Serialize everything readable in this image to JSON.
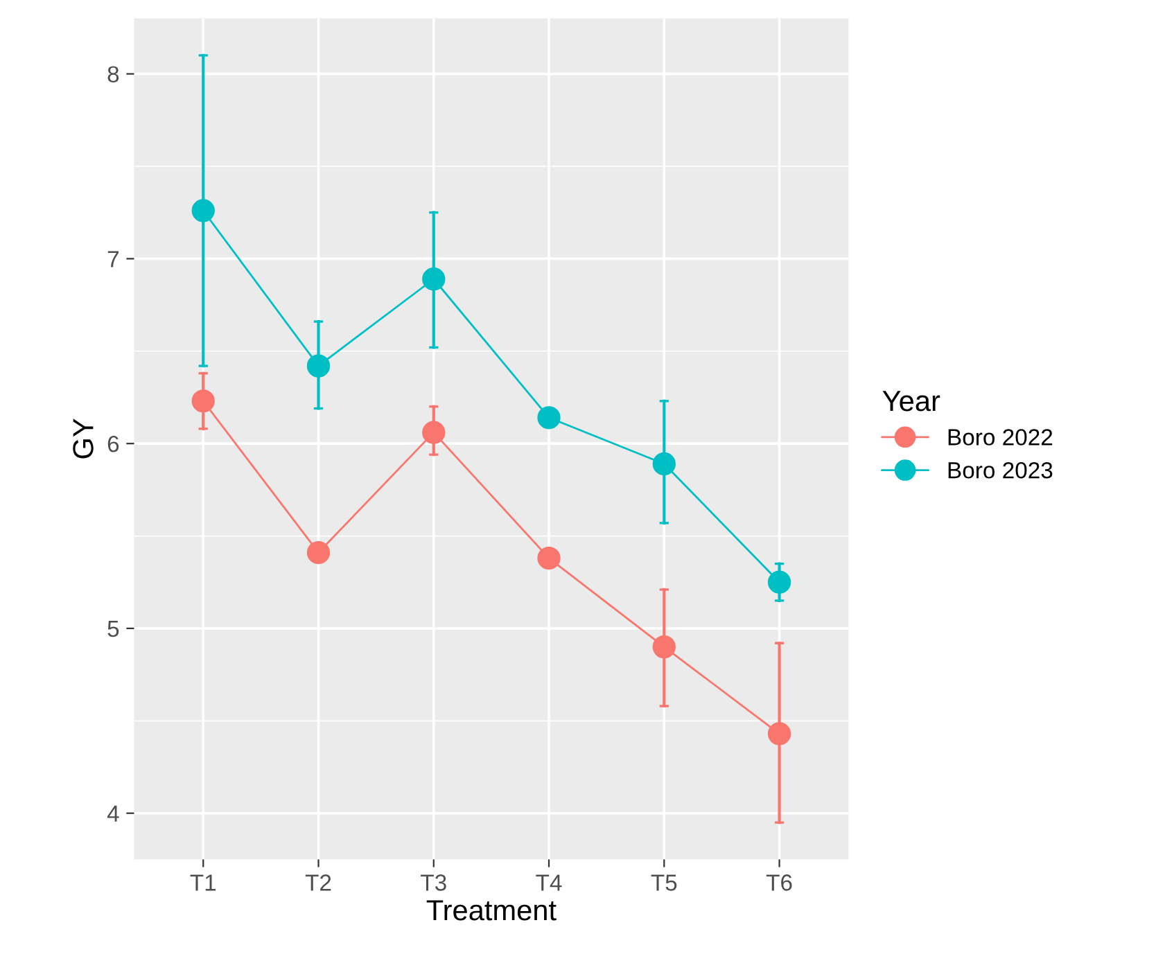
{
  "chart_data": {
    "type": "line",
    "xlabel": "Treatment",
    "ylabel": "GY",
    "legend_title": "Year",
    "categories": [
      "T1",
      "T2",
      "T3",
      "T4",
      "T5",
      "T6"
    ],
    "series": [
      {
        "name": "Boro 2022",
        "color": "#f8766d",
        "values": [
          6.23,
          5.41,
          6.06,
          5.38,
          4.9,
          4.43
        ],
        "errors": [
          [
            6.08,
            6.38
          ],
          null,
          [
            5.94,
            6.2
          ],
          null,
          [
            4.58,
            5.21
          ],
          [
            3.95,
            4.92
          ]
        ]
      },
      {
        "name": "Boro 2023",
        "color": "#00bfc4",
        "values": [
          7.26,
          6.42,
          6.89,
          6.14,
          5.89,
          5.25
        ],
        "errors": [
          [
            6.42,
            8.1
          ],
          [
            6.19,
            6.66
          ],
          [
            6.52,
            7.25
          ],
          null,
          [
            5.57,
            6.23
          ],
          [
            5.15,
            5.35
          ]
        ]
      }
    ],
    "ylim": [
      3.75,
      8.3
    ],
    "yticks": [
      4,
      5,
      6,
      7,
      8
    ],
    "grid": true,
    "legend": "right",
    "marker": "circle",
    "line_style": "solid"
  }
}
